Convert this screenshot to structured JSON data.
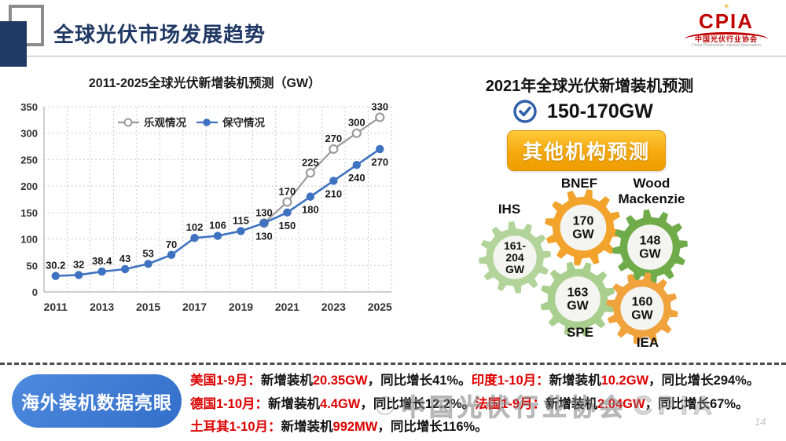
{
  "header": {
    "title": "全球光伏市场发展趋势"
  },
  "logo": {
    "acronym": "CPIA",
    "sun_icon": "☀",
    "cn": "中国光伏行业协会",
    "en": "China Photovoltaic Industry Association"
  },
  "chart_data": {
    "type": "line",
    "title": "2011-2025全球光伏新增装机预测（GW）",
    "xlabel": "",
    "ylabel": "GW",
    "ylim": [
      0,
      350
    ],
    "ytick_step": 50,
    "grid": true,
    "grid_style": "dashed",
    "legend_position": "top-center",
    "x_tick_labels": [
      "2011",
      "2013",
      "2015",
      "2017",
      "2019",
      "2021",
      "2023",
      "2025"
    ],
    "series": [
      {
        "name": "乐观情况",
        "color": "#9b9b9b",
        "marker": "open-circle",
        "points": [
          {
            "year": 2020,
            "value": 130,
            "label": "130",
            "label_side": "above"
          },
          {
            "year": 2021,
            "value": 170,
            "label": "170",
            "label_side": "above"
          },
          {
            "year": 2022,
            "value": 225,
            "label": "225",
            "label_side": "above"
          },
          {
            "year": 2023,
            "value": 270,
            "label": "270",
            "label_side": "above"
          },
          {
            "year": 2024,
            "value": 300,
            "label": "300",
            "label_side": "above"
          },
          {
            "year": 2025,
            "value": 330,
            "label": "330",
            "label_side": "above"
          }
        ]
      },
      {
        "name": "保守情况",
        "color": "#3e72c0",
        "marker": "filled-circle",
        "points": [
          {
            "year": 2011,
            "value": 30.2,
            "label": "30.2",
            "label_side": "above"
          },
          {
            "year": 2012,
            "value": 32,
            "label": "32",
            "label_side": "above"
          },
          {
            "year": 2013,
            "value": 38.4,
            "label": "38.4",
            "label_side": "above"
          },
          {
            "year": 2014,
            "value": 43,
            "label": "43",
            "label_side": "above"
          },
          {
            "year": 2015,
            "value": 53,
            "label": "53",
            "label_side": "above"
          },
          {
            "year": 2016,
            "value": 70,
            "label": "70",
            "label_side": "above"
          },
          {
            "year": 2017,
            "value": 102,
            "label": "102",
            "label_side": "above"
          },
          {
            "year": 2018,
            "value": 106,
            "label": "106",
            "label_side": "above"
          },
          {
            "year": 2019,
            "value": 115,
            "label": "115",
            "label_side": "above"
          },
          {
            "year": 2020,
            "value": 130,
            "label": "130",
            "label_side": "below"
          },
          {
            "year": 2021,
            "value": 150,
            "label": "150",
            "label_side": "below"
          },
          {
            "year": 2022,
            "value": 180,
            "label": "180",
            "label_side": "below"
          },
          {
            "year": 2023,
            "value": 210,
            "label": "210",
            "label_side": "below"
          },
          {
            "year": 2024,
            "value": 240,
            "label": "240",
            "label_side": "below"
          },
          {
            "year": 2025,
            "value": 270,
            "label": "270",
            "label_side": "below"
          }
        ]
      }
    ]
  },
  "right_panel": {
    "heading": "2021年全球光伏新增装机预测",
    "forecast_value": "150-170GW",
    "check_icon": "check-in-circle",
    "button_label": "其他机构预测",
    "button_color": "#f5a90e",
    "gears": [
      {
        "org": "IHS",
        "value_lines": [
          "161-",
          "204",
          "GW"
        ],
        "color": "#b2d49a"
      },
      {
        "org": "BNEF",
        "value_lines": [
          "170",
          "GW"
        ],
        "color": "#f2a32c"
      },
      {
        "org": "Wood Mackenzie",
        "value_lines": [
          "148",
          "GW"
        ],
        "color": "#6fac49"
      },
      {
        "org": "SPE",
        "value_lines": [
          "163",
          "GW"
        ],
        "color": "#a9cf8e"
      },
      {
        "org": "IEA",
        "value_lines": [
          "160",
          "GW"
        ],
        "color": "#f0a23c"
      }
    ]
  },
  "bottom": {
    "badge": "海外装机数据亮眼",
    "badge_color": "#3d7ad5",
    "accent_red": "#dd0000",
    "lines": [
      [
        {
          "t": "美国1-9月：",
          "c": "r"
        },
        {
          "t": "新增装机",
          "c": "k"
        },
        {
          "t": "20.35GW",
          "c": "r"
        },
        {
          "t": "，同比增长41%。",
          "c": "k"
        },
        {
          "t": "印度1-10月：",
          "c": "r"
        },
        {
          "t": "新增装机",
          "c": "k"
        },
        {
          "t": "10.2GW",
          "c": "r"
        },
        {
          "t": "，同比增长294%。",
          "c": "k"
        }
      ],
      [
        {
          "t": "德国1-10月：",
          "c": "r"
        },
        {
          "t": "新增装机",
          "c": "k"
        },
        {
          "t": "4.4GW",
          "c": "r"
        },
        {
          "t": "，同比增长12.2%。",
          "c": "k"
        },
        {
          "t": "法国1-9月：",
          "c": "r"
        },
        {
          "t": "新增装机",
          "c": "k"
        },
        {
          "t": "2.04GW",
          "c": "r"
        },
        {
          "t": "，同比增长67%。",
          "c": "k"
        }
      ],
      [
        {
          "t": "土耳其1-10月：",
          "c": "r"
        },
        {
          "t": "新增装机",
          "c": "k"
        },
        {
          "t": "992MW",
          "c": "r"
        },
        {
          "t": "，同比增长116%。",
          "c": "k"
        }
      ]
    ]
  },
  "watermark": {
    "text": "中国光伏行业协会",
    "suffix": "CPIA"
  },
  "page_number": "14"
}
